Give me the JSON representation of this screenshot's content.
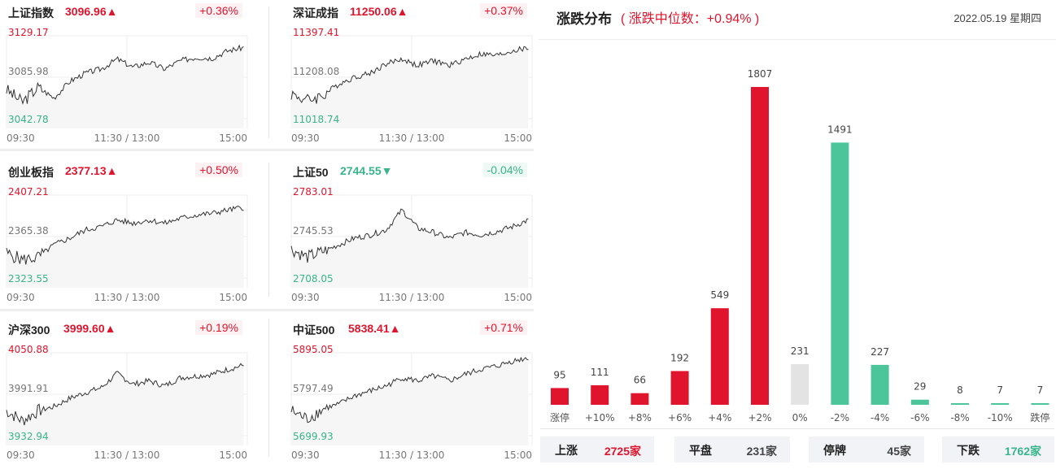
{
  "indices": [
    {
      "name": "上证指数",
      "value": "3096.96",
      "arrow": "▲",
      "change": "+0.36%",
      "dir": "up",
      "high": "3129.17",
      "mid": "3085.98",
      "low": "3042.78",
      "start": 3071.5,
      "series_id": 0
    },
    {
      "name": "深证成指",
      "value": "11250.06",
      "arrow": "▲",
      "change": "+0.37%",
      "dir": "up",
      "high": "11397.41",
      "mid": "11208.08",
      "low": "11018.74",
      "start": 11146.0,
      "series_id": 1
    },
    {
      "name": "创业板指",
      "value": "2377.13",
      "arrow": "▲",
      "change": "+0.50%",
      "dir": "up",
      "high": "2407.21",
      "mid": "2365.38",
      "low": "2323.55",
      "start": 2342.0,
      "series_id": 2
    },
    {
      "name": "上证50",
      "value": "2744.55",
      "arrow": "▼",
      "change": "-0.04%",
      "dir": "down",
      "high": "2783.01",
      "mid": "2745.53",
      "low": "2708.05",
      "start": 2723.0,
      "series_id": 3
    },
    {
      "name": "沪深300",
      "value": "3999.60",
      "arrow": "▲",
      "change": "+0.19%",
      "dir": "up",
      "high": "4050.88",
      "mid": "3991.91",
      "low": "3932.94",
      "start": 3957.0,
      "series_id": 4
    },
    {
      "name": "中证500",
      "value": "5838.41",
      "arrow": "▲",
      "change": "+0.71%",
      "dir": "up",
      "high": "5895.05",
      "mid": "5797.49",
      "low": "5699.93",
      "start": 5744.0,
      "series_id": 5
    }
  ],
  "time_labels": {
    "open": "09:30",
    "mid": "11:30 / 13:00",
    "close": "15:00"
  },
  "distribution": {
    "title": "涨跌分布",
    "subtitle": "( 涨跌中位数：+0.94% )",
    "date": "2022.05.19 星期四"
  },
  "chart_data": {
    "type": "bar",
    "categories": [
      "涨停",
      "+10%",
      "+8%",
      "+6%",
      "+4%",
      "+2%",
      "0%",
      "-2%",
      "-4%",
      "-6%",
      "-8%",
      "-10%",
      "跌停"
    ],
    "values": [
      95,
      111,
      66,
      192,
      549,
      1807,
      231,
      1491,
      227,
      29,
      8,
      7,
      7
    ],
    "colors": [
      "#e1142d",
      "#e1142d",
      "#e1142d",
      "#e1142d",
      "#e1142d",
      "#e1142d",
      "#e3e3e3",
      "#4dc59a",
      "#4dc59a",
      "#4dc59a",
      "#4dc59a",
      "#4dc59a",
      "#4dc59a"
    ]
  },
  "summary": [
    {
      "key": "上涨",
      "value": "2725家",
      "color": "#e1142d"
    },
    {
      "key": "平盘",
      "value": "231家",
      "color": "#444444"
    },
    {
      "key": "停牌",
      "value": "45家",
      "color": "#444444"
    },
    {
      "key": "下跌",
      "value": "1762家",
      "color": "#38b58a"
    }
  ],
  "colors": {
    "up": "#e1142d",
    "down": "#38b58a",
    "line": "#333333"
  }
}
